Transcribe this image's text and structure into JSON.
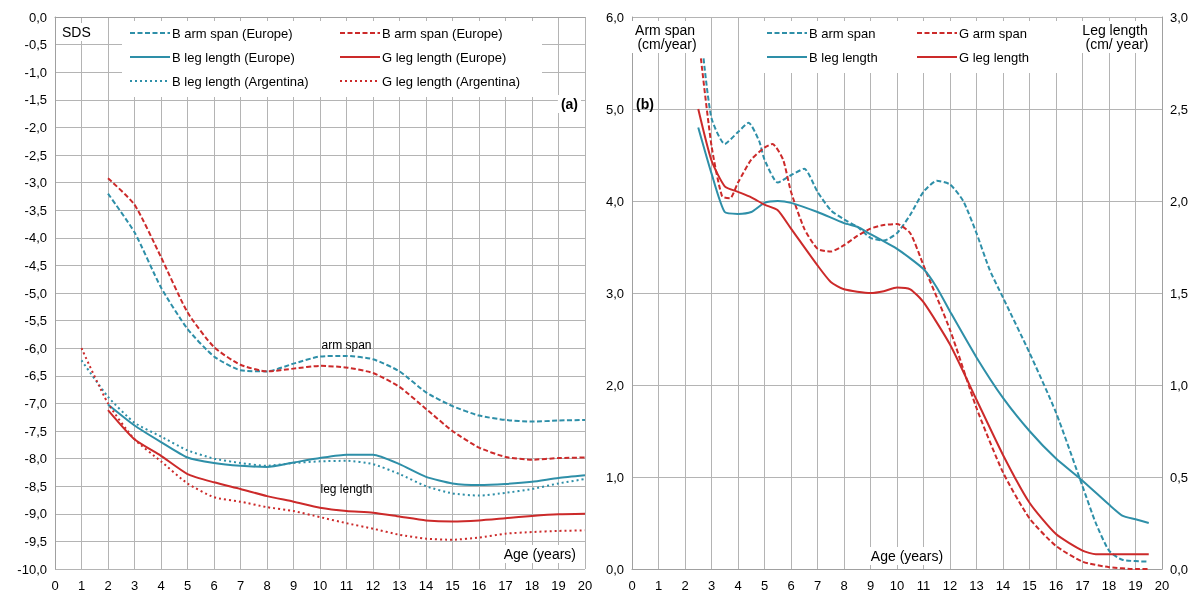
{
  "chart_data": [
    {
      "type": "line",
      "ylabel": "SDS",
      "xlabel": "Age (years)",
      "xlim": [
        0,
        20
      ],
      "xticks": [
        0,
        1,
        2,
        3,
        4,
        5,
        6,
        7,
        8,
        9,
        10,
        11,
        12,
        13,
        14,
        15,
        16,
        17,
        18,
        19,
        20
      ],
      "ylim": [
        -10,
        0
      ],
      "yticks": [
        {
          "value": -10,
          "label": "-10,0"
        },
        {
          "value": -9.5,
          "label": "-9,5"
        },
        {
          "value": -9,
          "label": "-9,0"
        },
        {
          "value": -8.5,
          "label": "-8,5"
        },
        {
          "value": -8,
          "label": "-8,0"
        },
        {
          "value": -7.5,
          "label": "-7,5"
        },
        {
          "value": -7,
          "label": "-7,0"
        },
        {
          "value": -6.5,
          "label": "-6,5"
        },
        {
          "value": -6,
          "label": "-6,0"
        },
        {
          "value": -5.5,
          "label": "-5,5"
        },
        {
          "value": -5,
          "label": "-5,0"
        },
        {
          "value": -4.5,
          "label": "-4,5"
        },
        {
          "value": -4,
          "label": "-4,0"
        },
        {
          "value": -3.5,
          "label": "-3,5"
        },
        {
          "value": -3,
          "label": "-3,0"
        },
        {
          "value": -2.5,
          "label": "-2,5"
        },
        {
          "value": -2,
          "label": "-2,0"
        },
        {
          "value": -1.5,
          "label": "-1,5"
        },
        {
          "value": -1,
          "label": "-1,0"
        },
        {
          "value": -0.5,
          "label": "-0,5"
        },
        {
          "value": 0,
          "label": "0,0"
        }
      ],
      "grid": true,
      "legend": "top",
      "annotations": [
        "(a)",
        "arm span",
        "leg length"
      ],
      "series": [
        {
          "name": "B arm span (Europe)",
          "color": "#2e8fa8",
          "line_style": "dashed",
          "x": [
            2,
            3,
            4,
            5,
            6,
            7,
            8,
            9,
            10,
            11,
            12,
            13,
            14,
            15,
            16,
            17,
            18,
            19,
            20
          ],
          "values": [
            -3.2,
            -3.9,
            -4.9,
            -5.65,
            -6.15,
            -6.4,
            -6.42,
            -6.28,
            -6.15,
            -6.14,
            -6.2,
            -6.42,
            -6.8,
            -7.05,
            -7.22,
            -7.3,
            -7.33,
            -7.31,
            -7.3
          ]
        },
        {
          "name": "B arm span (Europe)",
          "color": "#cc2a2a",
          "line_style": "dashed",
          "x": [
            2,
            3,
            4,
            5,
            6,
            7,
            8,
            9,
            10,
            11,
            12,
            13,
            14,
            15,
            16,
            17,
            18,
            19,
            20
          ],
          "values": [
            -2.92,
            -3.4,
            -4.35,
            -5.35,
            -5.98,
            -6.3,
            -6.42,
            -6.37,
            -6.32,
            -6.35,
            -6.45,
            -6.7,
            -7.1,
            -7.5,
            -7.8,
            -7.97,
            -8.02,
            -7.99,
            -7.98
          ]
        },
        {
          "name": "B leg length (Europe)",
          "color": "#2e8fa8",
          "line_style": "solid",
          "x": [
            2,
            3,
            4,
            5,
            6,
            7,
            8,
            9,
            10,
            11,
            12,
            13,
            14,
            15,
            16,
            17,
            18,
            19,
            20
          ],
          "values": [
            -7.02,
            -7.4,
            -7.7,
            -7.98,
            -8.08,
            -8.13,
            -8.15,
            -8.07,
            -7.99,
            -7.93,
            -7.93,
            -8.1,
            -8.33,
            -8.45,
            -8.48,
            -8.46,
            -8.42,
            -8.35,
            -8.3
          ]
        },
        {
          "name": "G leg length (Europe)",
          "color": "#cc2a2a",
          "line_style": "solid",
          "x": [
            2,
            3,
            4,
            5,
            6,
            7,
            8,
            9,
            10,
            11,
            12,
            13,
            14,
            15,
            16,
            17,
            18,
            19,
            20
          ],
          "values": [
            -7.12,
            -7.65,
            -7.95,
            -8.28,
            -8.43,
            -8.55,
            -8.68,
            -8.78,
            -8.89,
            -8.95,
            -8.98,
            -9.05,
            -9.12,
            -9.14,
            -9.12,
            -9.08,
            -9.04,
            -9.01,
            -9.0
          ]
        },
        {
          "name": "B leg length (Argentina)",
          "color": "#2e8fa8",
          "line_style": "dotted",
          "x": [
            1,
            2,
            3,
            4,
            5,
            6,
            7,
            8,
            9,
            10,
            11,
            12,
            13,
            14,
            15,
            16,
            17,
            18,
            19,
            20
          ],
          "values": [
            -6.22,
            -6.88,
            -7.35,
            -7.6,
            -7.85,
            -8.0,
            -8.08,
            -8.13,
            -8.08,
            -8.05,
            -8.04,
            -8.1,
            -8.28,
            -8.5,
            -8.63,
            -8.67,
            -8.62,
            -8.55,
            -8.45,
            -8.37
          ]
        },
        {
          "name": "G leg length (Argentina)",
          "color": "#cc2a2a",
          "line_style": "dotted",
          "x": [
            1,
            2,
            3,
            4,
            5,
            6,
            7,
            8,
            9,
            10,
            11,
            12,
            13,
            14,
            15,
            16,
            17,
            18,
            19,
            20
          ],
          "values": [
            -6.0,
            -7.0,
            -7.65,
            -8.05,
            -8.45,
            -8.7,
            -8.78,
            -8.88,
            -8.95,
            -9.06,
            -9.17,
            -9.27,
            -9.38,
            -9.45,
            -9.47,
            -9.43,
            -9.36,
            -9.33,
            -9.31,
            -9.3
          ]
        }
      ]
    },
    {
      "type": "line",
      "ylabel": "Arm span (cm/year)",
      "y2label": "Leg length (cm/ year)",
      "xlabel": "Age (years)",
      "xlim": [
        0,
        20
      ],
      "xticks": [
        0,
        1,
        2,
        3,
        4,
        5,
        6,
        7,
        8,
        9,
        10,
        11,
        12,
        13,
        14,
        15,
        16,
        17,
        18,
        19,
        20
      ],
      "ylim": [
        0,
        6
      ],
      "yticks": [
        {
          "value": 0,
          "label": "0,0"
        },
        {
          "value": 1,
          "label": "1,0"
        },
        {
          "value": 2,
          "label": "2,0"
        },
        {
          "value": 3,
          "label": "3,0"
        },
        {
          "value": 4,
          "label": "4,0"
        },
        {
          "value": 5,
          "label": "5,0"
        },
        {
          "value": 6,
          "label": "6,0"
        }
      ],
      "y2lim": [
        0,
        3
      ],
      "y2ticks": [
        {
          "value": 0,
          "label": "0,0"
        },
        {
          "value": 0.5,
          "label": "0,5"
        },
        {
          "value": 1,
          "label": "1,0"
        },
        {
          "value": 1.5,
          "label": "1,5"
        },
        {
          "value": 2,
          "label": "2,0"
        },
        {
          "value": 2.5,
          "label": "2,5"
        },
        {
          "value": 3,
          "label": "3,0"
        }
      ],
      "grid": true,
      "legend": "top",
      "annotations": [
        "(b)"
      ],
      "series": [
        {
          "name": "B arm span",
          "color": "#2e8fa8",
          "line_style": "dashed",
          "x": [
            2.7,
            3,
            3.5,
            4,
            4.4,
            4.8,
            5,
            5.5,
            6,
            6.5,
            7,
            7.5,
            8,
            8.5,
            9,
            9.5,
            10,
            10.5,
            11,
            11.5,
            12,
            12.5,
            13,
            13.5,
            14,
            15,
            16,
            17,
            17.5,
            18,
            18.5,
            19.5
          ],
          "values": [
            5.55,
            4.9,
            4.62,
            4.75,
            4.85,
            4.65,
            4.45,
            4.2,
            4.28,
            4.35,
            4.1,
            3.9,
            3.8,
            3.72,
            3.6,
            3.57,
            3.65,
            3.85,
            4.1,
            4.22,
            4.18,
            4.0,
            3.65,
            3.25,
            2.95,
            2.35,
            1.7,
            0.9,
            0.5,
            0.2,
            0.1,
            0.08
          ]
        },
        {
          "name": "G arm span",
          "color": "#cc2a2a",
          "line_style": "dashed",
          "x": [
            2.6,
            3,
            3.4,
            3.7,
            4,
            4.5,
            5,
            5.3,
            5.7,
            6,
            6.5,
            7,
            7.5,
            8,
            8.5,
            9,
            9.5,
            10,
            10.5,
            11,
            12,
            13,
            14,
            15,
            16,
            17,
            18,
            19,
            19.5
          ],
          "values": [
            5.55,
            4.6,
            4.05,
            4.03,
            4.2,
            4.45,
            4.58,
            4.62,
            4.45,
            4.1,
            3.7,
            3.48,
            3.45,
            3.52,
            3.62,
            3.7,
            3.74,
            3.75,
            3.65,
            3.3,
            2.6,
            1.75,
            1.05,
            0.55,
            0.25,
            0.08,
            0.02,
            0,
            0
          ]
        },
        {
          "name": "B leg length",
          "color": "#2e8fa8",
          "line_style": "solid",
          "axis": "y2",
          "x": [
            2.5,
            3,
            3.5,
            4,
            4.5,
            5,
            5.5,
            6,
            7,
            8,
            8.5,
            9,
            10,
            11,
            11.5,
            12,
            13,
            14,
            15,
            16,
            17,
            18,
            18.5,
            19,
            19.5
          ],
          "values": [
            2.4,
            2.15,
            1.94,
            1.93,
            1.94,
            1.99,
            2.0,
            1.99,
            1.94,
            1.88,
            1.86,
            1.82,
            1.74,
            1.63,
            1.53,
            1.4,
            1.15,
            0.93,
            0.75,
            0.6,
            0.48,
            0.35,
            0.29,
            0.27,
            0.25
          ]
        },
        {
          "name": "G leg length",
          "color": "#cc2a2a",
          "line_style": "solid",
          "axis": "y2",
          "x": [
            2.5,
            3,
            3.5,
            4,
            4.5,
            5,
            5.5,
            6,
            7,
            7.5,
            8,
            9,
            9.5,
            10,
            10.5,
            11,
            12,
            13,
            14,
            15,
            16,
            17,
            17.5,
            18,
            19.5
          ],
          "values": [
            2.5,
            2.22,
            2.08,
            2.05,
            2.02,
            1.98,
            1.95,
            1.85,
            1.65,
            1.56,
            1.52,
            1.5,
            1.51,
            1.53,
            1.52,
            1.45,
            1.22,
            0.92,
            0.62,
            0.36,
            0.19,
            0.1,
            0.08,
            0.08,
            0.08
          ]
        }
      ]
    }
  ]
}
